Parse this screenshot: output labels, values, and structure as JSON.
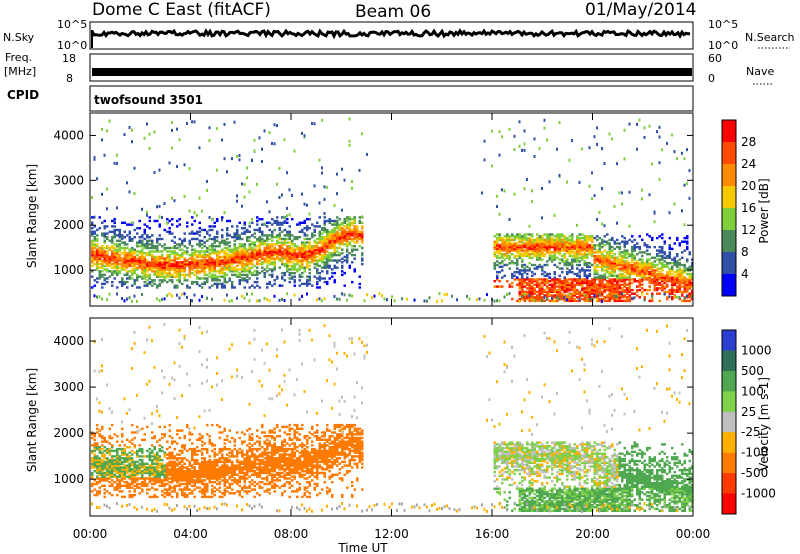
{
  "header": {
    "station": "Dome C East (fitACF)",
    "beam": "Beam 06",
    "date": "01/May/2014"
  },
  "strips": {
    "nsky": {
      "label": "N.Sky",
      "ticks": [
        "10^5",
        "10^0"
      ]
    },
    "nsearch": {
      "label": "N.Search",
      "ticks": [
        "10^5",
        "10^0"
      ]
    },
    "freq": {
      "label_line1": "Freq.",
      "label_line2": "[MHz]",
      "ticks": [
        "18",
        "8"
      ]
    },
    "nave": {
      "label": "Nave",
      "ticks": [
        "60",
        "0"
      ]
    },
    "cpid": {
      "label": "CPID",
      "value": "twofsound 3501"
    }
  },
  "colors": {
    "power": [
      "#0000ff",
      "#3050a8",
      "#4a8a5a",
      "#7fcf3a",
      "#f5c800",
      "#ff8a00",
      "#ff4a00",
      "#ff0000"
    ],
    "velocity": [
      "#2a3fd0",
      "#2f6f5a",
      "#4fa84f",
      "#7fd04a",
      "#bfbfbf",
      "#ffb000",
      "#ff7a00",
      "#ff3a00",
      "#ff0000"
    ],
    "ground": "#a8a8a8"
  },
  "chart_data": [
    {
      "type": "heatmap",
      "title": "",
      "xlabel": "",
      "ylabel": "Slant Range [km]",
      "ylim": [
        200,
        4500
      ],
      "xlim": [
        "00:00",
        "24:00"
      ],
      "y_ticks": [
        "4000",
        "3000",
        "2000",
        "1000"
      ],
      "colorbar": {
        "label": "Power [dB]",
        "ticks": [
          "28",
          "24",
          "20",
          "16",
          "12",
          "8",
          "4"
        ],
        "range": [
          0,
          32
        ]
      },
      "echo_regions": [
        {
          "t_start": 0.0,
          "t_end": 10.8,
          "range_low": 600,
          "range_high": 2200,
          "peak_power_db": 30
        },
        {
          "t_start": 16.0,
          "t_end": 24.0,
          "range_low": 300,
          "range_high": 1800,
          "peak_power_db": 28
        }
      ]
    },
    {
      "type": "heatmap",
      "title": "",
      "xlabel": "Time UT",
      "ylabel": "Slant Range [km]",
      "ylim": [
        200,
        4500
      ],
      "xlim": [
        "00:00",
        "24:00"
      ],
      "y_ticks": [
        "4000",
        "3000",
        "2000",
        "1000"
      ],
      "x_ticks": [
        "00:00",
        "04:00",
        "08:00",
        "12:00",
        "16:00",
        "20:00",
        "00:00"
      ],
      "colorbar": {
        "label": "Velocity [m s-1]",
        "ticks": [
          "1000",
          "500",
          "100",
          "25",
          "-25",
          "-100",
          "-500",
          "-1000"
        ]
      },
      "echo_regions": [
        {
          "t_start": 0.0,
          "t_end": 10.8,
          "range_low": 600,
          "range_high": 2200,
          "dominant_velocity": -200
        },
        {
          "t_start": 16.0,
          "t_end": 24.0,
          "range_low": 300,
          "range_high": 1800,
          "dominant_velocity": 50
        }
      ]
    }
  ]
}
